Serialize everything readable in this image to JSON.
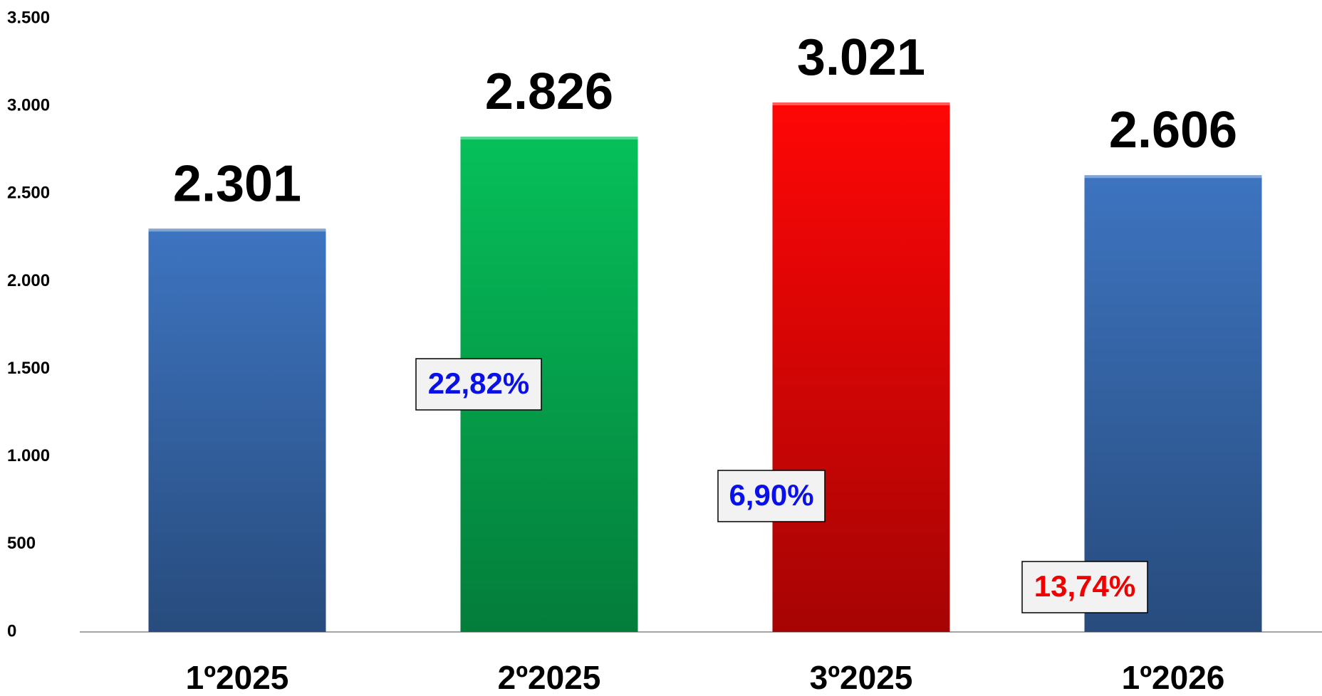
{
  "chart_data": {
    "type": "bar",
    "categories": [
      "1º2025",
      "2º2025",
      "3º2025",
      "1º2026"
    ],
    "values": [
      2301,
      2826,
      3021,
      2606
    ],
    "value_labels": [
      "2.301",
      "2.826",
      "3.021",
      "2.606"
    ],
    "colors": [
      "#3d74c0",
      "#06c05a",
      "#ff0606",
      "#3d74c0"
    ],
    "ylim": [
      0,
      3500
    ],
    "yticks": [
      {
        "value": 0,
        "label": "0"
      },
      {
        "value": 500,
        "label": "500"
      },
      {
        "value": 1000,
        "label": "1.000"
      },
      {
        "value": 1500,
        "label": "1.500"
      },
      {
        "value": 2000,
        "label": "2.000"
      },
      {
        "value": 2500,
        "label": "2.500"
      },
      {
        "value": 3000,
        "label": "3.000"
      },
      {
        "value": 3500,
        "label": "3.500"
      }
    ],
    "annotations": [
      {
        "text": "22,82%",
        "color": "#0a10e8"
      },
      {
        "text": "6,90%",
        "color": "#0a10e8"
      },
      {
        "text": "13,74%",
        "color": "#f00000"
      }
    ]
  }
}
